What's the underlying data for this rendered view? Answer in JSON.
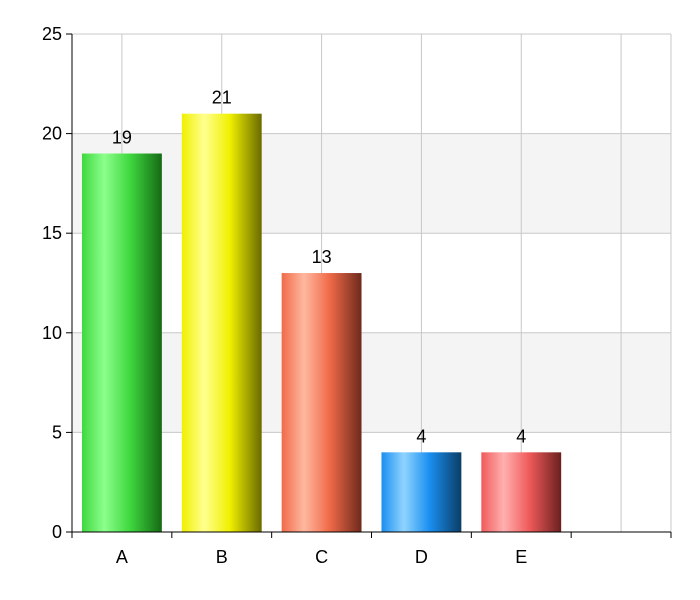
{
  "chart_data": {
    "type": "bar",
    "title": "",
    "xlabel": "",
    "ylabel": "",
    "categories": [
      "A",
      "B",
      "C",
      "D",
      "E"
    ],
    "values": [
      19,
      21,
      13,
      4,
      4
    ],
    "data_labels": [
      "19",
      "21",
      "13",
      "4",
      "4"
    ],
    "ylim": [
      0,
      25
    ],
    "yticks": [
      0,
      5,
      10,
      15,
      20,
      25
    ],
    "ytick_labels": [
      "0",
      "5",
      "10",
      "15",
      "20",
      "25"
    ],
    "grid": true,
    "legend": "none",
    "colors": {
      "bars": [
        "#3fd83f",
        "#f0f000",
        "#f06a48",
        "#1a8ff0",
        "#f05a5a"
      ],
      "bars_light": [
        "#8cff8c",
        "#ffff90",
        "#ffb8a0",
        "#90d4ff",
        "#ffb0b0"
      ],
      "bars_dark": [
        "#146a14",
        "#6a6a00",
        "#6e2a1c",
        "#0a3d66",
        "#6a2020"
      ],
      "grid": "#c8c8c8",
      "band": "#f4f4f4",
      "axis": "#000000"
    }
  }
}
